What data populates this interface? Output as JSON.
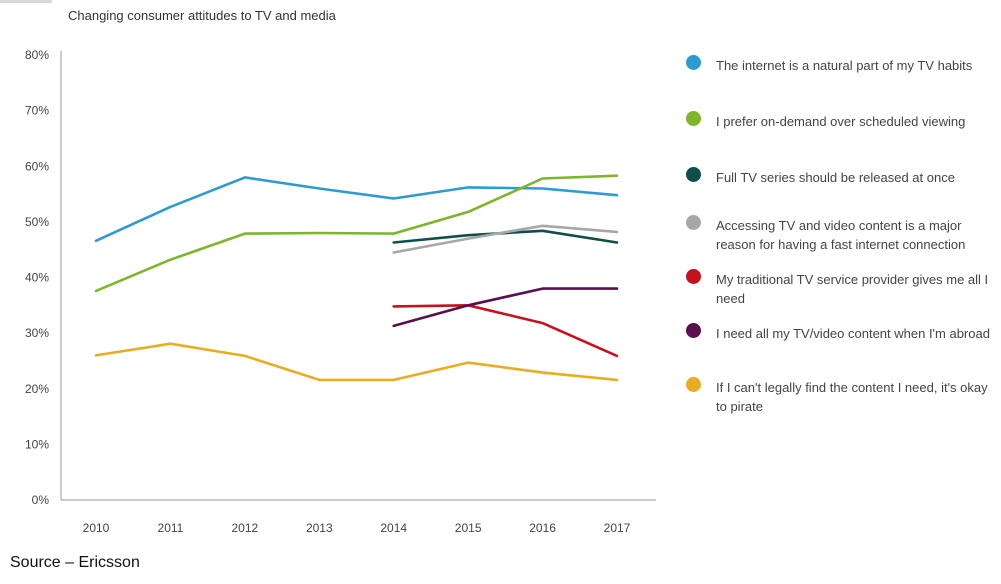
{
  "source_text": "Source – Ericsson",
  "chart_data": {
    "type": "line",
    "title": "Changing consumer attitudes to TV and media",
    "xlabel": "",
    "ylabel": "",
    "x": [
      "2010",
      "2011",
      "2012",
      "2013",
      "2014",
      "2015",
      "2016",
      "2017"
    ],
    "ylim": [
      0,
      80
    ],
    "y_ticks": [
      "0%",
      "10%",
      "20%",
      "30%",
      "40%",
      "50%",
      "60%",
      "70%",
      "80%"
    ],
    "grid": false,
    "legend_position": "right",
    "series": [
      {
        "name": "The internet is a natural part of my TV habits",
        "color": "#2e9bd0",
        "values": [
          46.6,
          52.7,
          58.0,
          56.0,
          54.2,
          56.2,
          56.0,
          54.8
        ]
      },
      {
        "name": "I prefer on-demand over scheduled viewing",
        "color": "#7db52d",
        "values": [
          37.6,
          43.2,
          47.9,
          48.0,
          47.9,
          51.8,
          57.8,
          58.3
        ]
      },
      {
        "name": "Full TV series should be released at once",
        "color": "#0f4f4a",
        "values": [
          null,
          null,
          null,
          null,
          46.3,
          47.6,
          48.4,
          46.3
        ]
      },
      {
        "name": "Accessing TV and video content is a major reason for having a fast internet connection",
        "color": "#a7a7a7",
        "values": [
          null,
          null,
          null,
          null,
          44.5,
          47.0,
          49.3,
          48.2
        ]
      },
      {
        "name": "My traditional TV service provider gives me all I need",
        "color": "#c4121f",
        "values": [
          null,
          null,
          null,
          null,
          34.8,
          35.0,
          31.8,
          25.9
        ]
      },
      {
        "name": "I need all my TV/video content when I'm abroad",
        "color": "#5a0f4f",
        "values": [
          null,
          null,
          null,
          null,
          31.3,
          35.0,
          38.0,
          38.0
        ]
      },
      {
        "name": "If I can't legally find the content I need, it's okay to pirate",
        "color": "#e9ad24",
        "values": [
          26.0,
          28.1,
          25.9,
          21.6,
          21.6,
          24.7,
          22.9,
          21.6
        ]
      }
    ]
  }
}
